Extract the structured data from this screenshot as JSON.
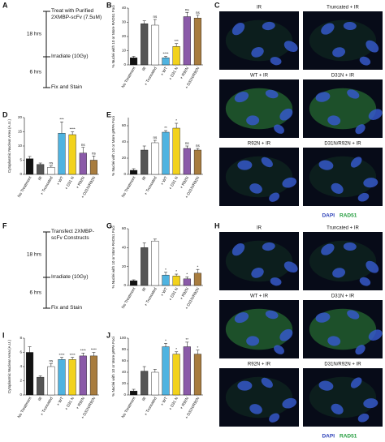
{
  "chart_data": [
    {
      "type": "bar",
      "panel": "B",
      "ylabel": "% Nuclei with 10 or More RAD51 Foci",
      "categories": [
        "No Treatment",
        "IR",
        "+ Truncated",
        "+ WT",
        "+ D31 N",
        "+ R92N",
        "+ D31N/R92N"
      ],
      "values": [
        5,
        29,
        28,
        5,
        13,
        34,
        33
      ],
      "errors": [
        1,
        2,
        4,
        1,
        2,
        3,
        2
      ],
      "annotations": [
        null,
        null,
        "ns",
        "****",
        "***",
        "ns",
        "ns"
      ],
      "colors": [
        "#111111",
        "#555555",
        "#ffffff",
        "#4fb3e0",
        "#f2d21b",
        "#8a5aa8",
        "#a87c3e"
      ],
      "ylim": [
        0,
        40
      ],
      "yticks": [
        0,
        10,
        20,
        30,
        40
      ]
    },
    {
      "type": "bar",
      "panel": "D",
      "ylabel": "Cytoplasmic Nuclear Area (A.U.)",
      "categories": [
        "No Treatment",
        "IR",
        "+ Truncated",
        "+ WT",
        "+ D31 N",
        "+ R92N",
        "+ D31N/R92N"
      ],
      "values": [
        5.5,
        3.5,
        2.5,
        14.5,
        14,
        7.5,
        5
      ],
      "errors": [
        0.8,
        0.5,
        0.5,
        4,
        1,
        2,
        1.5
      ],
      "annotations": [
        null,
        null,
        "ns",
        "***",
        "****",
        "ns",
        "ns"
      ],
      "colors": [
        "#111111",
        "#555555",
        "#ffffff",
        "#4fb3e0",
        "#f2d21b",
        "#8a5aa8",
        "#a87c3e"
      ],
      "ylim": [
        0,
        20
      ],
      "yticks": [
        0,
        5,
        10,
        15,
        20
      ]
    },
    {
      "type": "bar",
      "panel": "E",
      "ylabel": "% Nuclei with 10 or More pRPA Foci",
      "categories": [
        "No Treatment",
        "IR",
        "+ Truncated",
        "+ WT",
        "+ D31 N",
        "+ R92N",
        "+ D31N/R92N"
      ],
      "values": [
        5,
        30,
        39,
        52,
        57,
        32,
        30
      ],
      "errors": [
        2,
        5,
        3,
        2,
        6,
        3,
        2
      ],
      "annotations": [
        null,
        null,
        "ns",
        "**",
        "*",
        "ns",
        "ns"
      ],
      "colors": [
        "#111111",
        "#555555",
        "#ffffff",
        "#4fb3e0",
        "#f2d21b",
        "#8a5aa8",
        "#a87c3e"
      ],
      "ylim": [
        0,
        70
      ],
      "yticks": [
        0,
        20,
        40,
        60
      ]
    },
    {
      "type": "bar",
      "panel": "G",
      "ylabel": "% Nuclei with 10 or More RAD51 Foci",
      "categories": [
        "No Treatment",
        "IR",
        "+ Truncated",
        "+ WT",
        "+ D31 N",
        "+ R92N",
        "+ D31N/R92N"
      ],
      "values": [
        5,
        40,
        47,
        11,
        10,
        7,
        13
      ],
      "errors": [
        1,
        5,
        2,
        3,
        2,
        2,
        4
      ],
      "annotations": [
        null,
        null,
        null,
        "*",
        "*",
        "*",
        "*"
      ],
      "colors": [
        "#111111",
        "#555555",
        "#ffffff",
        "#4fb3e0",
        "#f2d21b",
        "#8a5aa8",
        "#a87c3e"
      ],
      "ylim": [
        0,
        60
      ],
      "yticks": [
        0,
        20,
        40,
        60
      ]
    },
    {
      "type": "bar",
      "panel": "I",
      "ylabel": "Cytoplasmic Nuclear Area (A.U.)",
      "categories": [
        "No Treatment",
        "IR",
        "+ Truncated",
        "+ WT",
        "+ D31 N",
        "+ R92N",
        "+ D31N/R92N"
      ],
      "values": [
        6,
        2.5,
        4,
        5,
        5,
        5.5,
        5.5
      ],
      "errors": [
        0.8,
        0.2,
        0.4,
        0.3,
        0.3,
        0.4,
        0.5
      ],
      "annotations": [
        null,
        null,
        "ns",
        "****",
        "****",
        "****",
        "****"
      ],
      "colors": [
        "#111111",
        "#555555",
        "#ffffff",
        "#4fb3e0",
        "#f2d21b",
        "#8a5aa8",
        "#a87c3e"
      ],
      "ylim": [
        0,
        8
      ],
      "yticks": [
        0,
        2,
        4,
        6,
        8
      ]
    },
    {
      "type": "bar",
      "panel": "J",
      "ylabel": "% Nuclei with 10 or More pRPA Foci",
      "categories": [
        "No Treatment",
        "IR",
        "+ Truncated",
        "+ WT",
        "+ D31 N",
        "+ R92N",
        "+ D31N/R92N"
      ],
      "values": [
        7,
        42,
        40,
        85,
        72,
        85,
        72
      ],
      "errors": [
        3,
        8,
        5,
        6,
        4,
        8,
        7
      ],
      "annotations": [
        null,
        null,
        null,
        "*",
        "*",
        "**",
        "*"
      ],
      "colors": [
        "#111111",
        "#555555",
        "#ffffff",
        "#4fb3e0",
        "#f2d21b",
        "#8a5aa8",
        "#a87c3e"
      ],
      "ylim": [
        0,
        100
      ],
      "yticks": [
        0,
        20,
        40,
        60,
        80,
        100
      ]
    }
  ],
  "timelines": [
    {
      "panel": "A",
      "steps": [
        "Treat with Purified 2XMBP-scFv (7.5uM)",
        "Irradiate (10Gy)",
        "Fix and Stain"
      ],
      "intervals": [
        "18 hrs",
        "6 hrs"
      ]
    },
    {
      "panel": "F",
      "steps": [
        "Transfect 2XMBP-scFv Constructs",
        "Irradiate (10Gy)",
        "Fix and Stain"
      ],
      "intervals": [
        "18 hrs",
        "6 hrs"
      ]
    }
  ],
  "micrographs": [
    {
      "panel": "C",
      "images": [
        "IR",
        "Truncated + IR",
        "WT + IR",
        "D31N + IR",
        "R92N + IR",
        "D31N/R92N + IR"
      ],
      "legend": [
        "DAPI",
        "RAD51"
      ]
    },
    {
      "panel": "H",
      "images": [
        "IR",
        "Truncated + IR",
        "WT + IR",
        "D31N + IR",
        "R92N + IR",
        "D31N/R92N + IR"
      ],
      "legend": [
        "DAPI",
        "RAD51"
      ]
    }
  ]
}
